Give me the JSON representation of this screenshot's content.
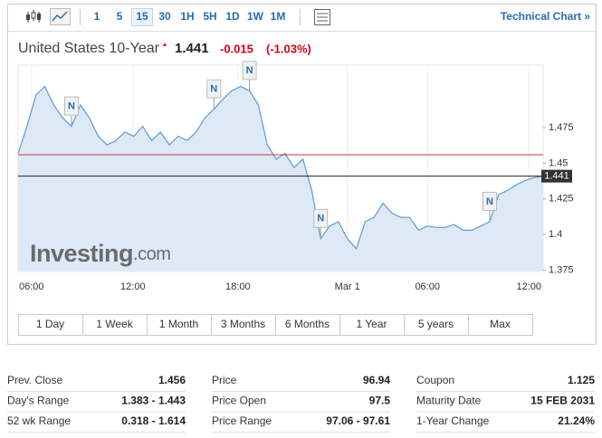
{
  "toolbar": {
    "intervals": [
      "1",
      "5",
      "15",
      "30",
      "1H",
      "5H",
      "1D",
      "1W",
      "1M"
    ],
    "selected_interval": 2,
    "technical_chart": "Technical Chart »"
  },
  "header": {
    "name": "United States 10-Year",
    "price": "1.441",
    "change": "-0.015",
    "change_pct": "(-1.03%)"
  },
  "chart_data": {
    "type": "area",
    "color": "#5b9bd5",
    "fill": "#dde9f5",
    "values": [
      1.457,
      1.476,
      1.498,
      1.504,
      1.491,
      1.482,
      1.476,
      1.491,
      1.482,
      1.469,
      1.463,
      1.466,
      1.472,
      1.469,
      1.476,
      1.466,
      1.472,
      1.463,
      1.469,
      1.466,
      1.472,
      1.482,
      1.488,
      1.495,
      1.501,
      1.504,
      1.501,
      1.491,
      1.463,
      1.453,
      1.457,
      1.447,
      1.453,
      1.431,
      1.397,
      1.406,
      1.409,
      1.397,
      1.39,
      1.409,
      1.412,
      1.422,
      1.415,
      1.412,
      1.412,
      1.403,
      1.406,
      1.405,
      1.405,
      1.407,
      1.403,
      1.403,
      1.406,
      1.409,
      1.428,
      1.431,
      1.435,
      1.438,
      1.44,
      1.441
    ],
    "xlim": [
      0,
      59
    ],
    "xticks": [
      {
        "value": 1.5,
        "label": "06:00"
      },
      {
        "value": 12.9,
        "label": "12:00"
      },
      {
        "value": 24.7,
        "label": "18:00"
      },
      {
        "value": 37,
        "label": "Mar 1"
      },
      {
        "value": 46,
        "label": "06:00"
      },
      {
        "value": 57.4,
        "label": "12:00"
      }
    ],
    "ylim": [
      1.374,
      1.519
    ],
    "yticks": [
      1.375,
      1.4,
      1.425,
      1.45,
      1.475
    ],
    "current_value": 1.441,
    "reference_line": 1.456,
    "reference_color": "#c0393b",
    "annotations": [
      {
        "text": "N",
        "x": 6
      },
      {
        "text": "N",
        "x": 22
      },
      {
        "text": "N",
        "x": 26
      },
      {
        "text": "N",
        "x": 34
      },
      {
        "text": "N",
        "x": 53
      }
    ],
    "watermark": {
      "brand": "Investing",
      "suffix": ".com"
    }
  },
  "ranges": [
    "1 Day",
    "1 Week",
    "1 Month",
    "3 Months",
    "6 Months",
    "1 Year",
    "5 years",
    "Max"
  ],
  "stats": [
    [
      {
        "label": "Prev. Close",
        "value": "1.456"
      },
      {
        "label": "Day's Range",
        "value": "1.383 - 1.443"
      },
      {
        "label": "52 wk Range",
        "value": "0.318 - 1.614"
      }
    ],
    [
      {
        "label": "Price",
        "value": "96.94"
      },
      {
        "label": "Price Open",
        "value": "97.5"
      },
      {
        "label": "Price Range",
        "value": "97.06 - 97.61"
      }
    ],
    [
      {
        "label": "Coupon",
        "value": "1.125"
      },
      {
        "label": "Maturity Date",
        "value": "15 FEB 2031"
      },
      {
        "label": "1-Year Change",
        "value": "21.24%"
      }
    ]
  ]
}
